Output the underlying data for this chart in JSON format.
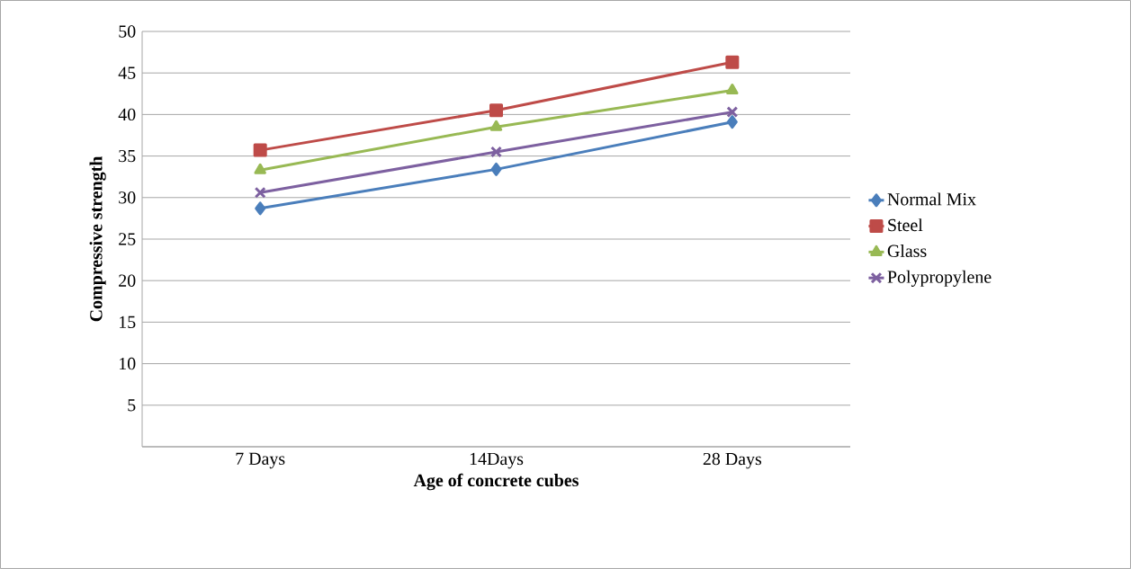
{
  "chart_data": {
    "type": "line",
    "xlabel": "Age of concrete cubes",
    "ylabel": "Compressive strength",
    "categories": [
      "7 Days",
      "14Days",
      "28 Days"
    ],
    "series": [
      {
        "name": "Normal Mix",
        "color": "#4a7ebb",
        "marker": "diamond",
        "values": [
          28.7,
          33.4,
          39.1
        ]
      },
      {
        "name": "Steel",
        "color": "#be4b48",
        "marker": "square",
        "values": [
          35.7,
          40.5,
          46.3
        ]
      },
      {
        "name": "Glass",
        "color": "#98b954",
        "marker": "triangle",
        "values": [
          33.3,
          38.5,
          42.9
        ]
      },
      {
        "name": "Polypropylene",
        "color": "#7d60a0",
        "marker": "cross",
        "values": [
          30.6,
          35.5,
          40.3
        ]
      }
    ],
    "ylim": [
      0,
      50
    ],
    "yticks": [
      {
        "value": 0,
        "label": null
      },
      5,
      10,
      15,
      20,
      25,
      30,
      35,
      40,
      45,
      50
    ],
    "grid": "y",
    "legend": "right",
    "line_style": "solid"
  }
}
